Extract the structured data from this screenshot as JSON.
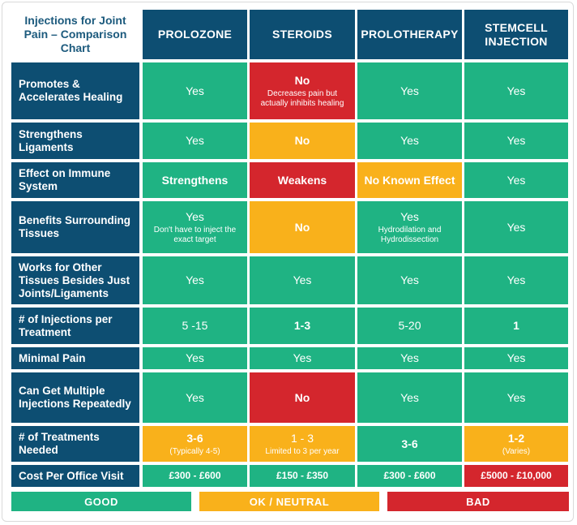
{
  "chart_data": {
    "type": "table",
    "title": "Injections for Joint Pain – Comparison Chart",
    "columns": [
      "PROLOZONE",
      "STEROIDS",
      "PROLOTHERAPY",
      "STEMCELL INJECTION"
    ],
    "rows": [
      {
        "label": "Promotes & Accelerates Healing",
        "cells": [
          {
            "main": "Yes",
            "sub": "",
            "status": "good"
          },
          {
            "main": "No",
            "sub": "Decreases pain but actually inhibits healing",
            "status": "bad"
          },
          {
            "main": "Yes",
            "sub": "",
            "status": "good"
          },
          {
            "main": "Yes",
            "sub": "",
            "status": "good"
          }
        ]
      },
      {
        "label": "Strengthens Ligaments",
        "cells": [
          {
            "main": "Yes",
            "sub": "",
            "status": "good"
          },
          {
            "main": "No",
            "sub": "",
            "status": "ok"
          },
          {
            "main": "Yes",
            "sub": "",
            "status": "good"
          },
          {
            "main": "Yes",
            "sub": "",
            "status": "good"
          }
        ]
      },
      {
        "label": "Effect on Immune System",
        "cells": [
          {
            "main": "Strengthens",
            "sub": "",
            "status": "good"
          },
          {
            "main": "Weakens",
            "sub": "",
            "status": "bad"
          },
          {
            "main": "No Known Effect",
            "sub": "",
            "status": "ok"
          },
          {
            "main": "Yes",
            "sub": "",
            "status": "good"
          }
        ]
      },
      {
        "label": "Benefits Surrounding Tissues",
        "cells": [
          {
            "main": "Yes",
            "sub": "Don't have to inject the exact target",
            "status": "good"
          },
          {
            "main": "No",
            "sub": "",
            "status": "ok"
          },
          {
            "main": "Yes",
            "sub": "Hydrodilation and Hydrodissection",
            "status": "good"
          },
          {
            "main": "Yes",
            "sub": "",
            "status": "good"
          }
        ]
      },
      {
        "label": "Works for Other Tissues Besides Just Joints/Ligaments",
        "cells": [
          {
            "main": "Yes",
            "sub": "",
            "status": "good"
          },
          {
            "main": "Yes",
            "sub": "",
            "status": "good"
          },
          {
            "main": "Yes",
            "sub": "",
            "status": "good"
          },
          {
            "main": "Yes",
            "sub": "",
            "status": "good"
          }
        ]
      },
      {
        "label": "# of Injections per Treatment",
        "cells": [
          {
            "main": "5 -15",
            "sub": "",
            "status": "good"
          },
          {
            "main": "1-3",
            "sub": "",
            "status": "good"
          },
          {
            "main": "5-20",
            "sub": "",
            "status": "good"
          },
          {
            "main": "1",
            "sub": "",
            "status": "good"
          }
        ]
      },
      {
        "label": "Minimal Pain",
        "cells": [
          {
            "main": "Yes",
            "sub": "",
            "status": "good"
          },
          {
            "main": "Yes",
            "sub": "",
            "status": "good"
          },
          {
            "main": "Yes",
            "sub": "",
            "status": "good"
          },
          {
            "main": "Yes",
            "sub": "",
            "status": "good"
          }
        ]
      },
      {
        "label": "Can Get Multiple Injections Repeatedly",
        "cells": [
          {
            "main": "Yes",
            "sub": "",
            "status": "good"
          },
          {
            "main": "No",
            "sub": "",
            "status": "bad"
          },
          {
            "main": "Yes",
            "sub": "",
            "status": "good"
          },
          {
            "main": "Yes",
            "sub": "",
            "status": "good"
          }
        ]
      },
      {
        "label": "# of Treatments Needed",
        "cells": [
          {
            "main": "3-6",
            "sub": "(Typically 4-5)",
            "status": "ok"
          },
          {
            "main": "1 - 3",
            "sub": "Limited to 3 per year",
            "status": "ok"
          },
          {
            "main": "3-6",
            "sub": "",
            "status": "good"
          },
          {
            "main": "1-2",
            "sub": "(Varies)",
            "status": "ok"
          }
        ]
      },
      {
        "label": "Cost Per Office Visit",
        "cells": [
          {
            "main": "£300 - £600",
            "sub": "",
            "status": "good"
          },
          {
            "main": "£150 - £350",
            "sub": "",
            "status": "good"
          },
          {
            "main": "£300 - £600",
            "sub": "",
            "status": "good"
          },
          {
            "main": "£5000 - £10,000",
            "sub": "",
            "status": "bad"
          }
        ]
      }
    ],
    "legend": [
      {
        "label": "GOOD",
        "status": "good"
      },
      {
        "label": "OK / NEUTRAL",
        "status": "ok"
      },
      {
        "label": "BAD",
        "status": "bad"
      }
    ]
  },
  "colors": {
    "header": "#0d4e72",
    "title_text": "#1c5a7d",
    "good": "#1fb383",
    "ok": "#f9b11b",
    "bad": "#d4262d"
  }
}
